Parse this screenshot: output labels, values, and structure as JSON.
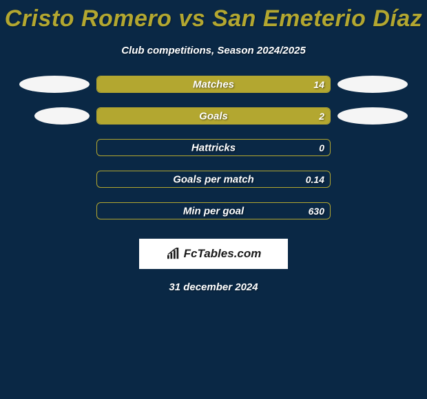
{
  "title": "Cristo Romero vs San Emeterio Díaz",
  "subtitle": "Club competitions, Season 2024/2025",
  "date": "31 december 2024",
  "logo_text": "FcTables.com",
  "colors": {
    "background": "#0a2845",
    "accent": "#b3a730",
    "title_color": "#b3a730",
    "text_color": "#ffffff",
    "ellipse_left": "#f5f5f5",
    "ellipse_right": "#f5f5f5",
    "logo_bg": "#ffffff",
    "logo_text": "#1a1a1a"
  },
  "bar_track_width": 340,
  "stats": [
    {
      "label": "Matches",
      "value": "14",
      "fill_pct": 100,
      "show_left_ellipse": true,
      "show_right_ellipse": true,
      "left_ellipse_w": 102,
      "right_ellipse_w": 102
    },
    {
      "label": "Goals",
      "value": "2",
      "fill_pct": 100,
      "show_left_ellipse": true,
      "show_right_ellipse": true,
      "left_ellipse_w": 80,
      "right_ellipse_w": 102
    },
    {
      "label": "Hattricks",
      "value": "0",
      "fill_pct": 0,
      "show_left_ellipse": false,
      "show_right_ellipse": false
    },
    {
      "label": "Goals per match",
      "value": "0.14",
      "fill_pct": 0,
      "show_left_ellipse": false,
      "show_right_ellipse": false
    },
    {
      "label": "Min per goal",
      "value": "630",
      "fill_pct": 0,
      "show_left_ellipse": false,
      "show_right_ellipse": false
    }
  ]
}
